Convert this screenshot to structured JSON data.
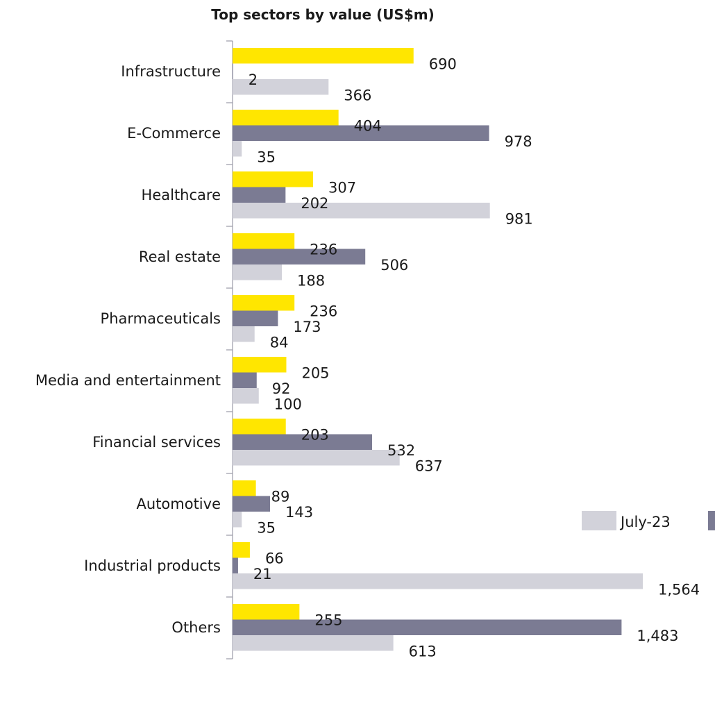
{
  "chart_data": {
    "type": "bar",
    "orientation": "horizontal",
    "title": "Top sectors by value (US$m)",
    "categories": [
      "Infrastructure",
      "E-Commerce",
      "Healthcare",
      "Real estate",
      "Pharmaceuticals",
      "Media and entertainment",
      "Financial services",
      "Automotive",
      "Industrial products",
      "Others"
    ],
    "series": [
      {
        "color": "#FFE600",
        "values": [
          690,
          404,
          307,
          236,
          236,
          205,
          203,
          89,
          66,
          255
        ]
      },
      {
        "color": "#7B7B93",
        "values": [
          2,
          978,
          202,
          506,
          173,
          92,
          532,
          143,
          21,
          1483
        ]
      },
      {
        "name": "July-23",
        "color": "#D2D2DA",
        "values": [
          366,
          35,
          981,
          188,
          84,
          100,
          637,
          35,
          1564,
          613
        ]
      }
    ],
    "data_labels": [
      [
        "690",
        "404",
        "307",
        "236",
        "236",
        "205",
        "203",
        "89",
        "66",
        "255"
      ],
      [
        "2",
        "978",
        "202",
        "506",
        "173",
        "92",
        "532",
        "143",
        "21",
        "1,483"
      ],
      [
        "366",
        "35",
        "981",
        "188",
        "84",
        "100",
        "637",
        "35",
        "1,564",
        "613"
      ]
    ],
    "xlim": [
      0,
      1600
    ],
    "grid": false,
    "legend": "bottom-right"
  }
}
